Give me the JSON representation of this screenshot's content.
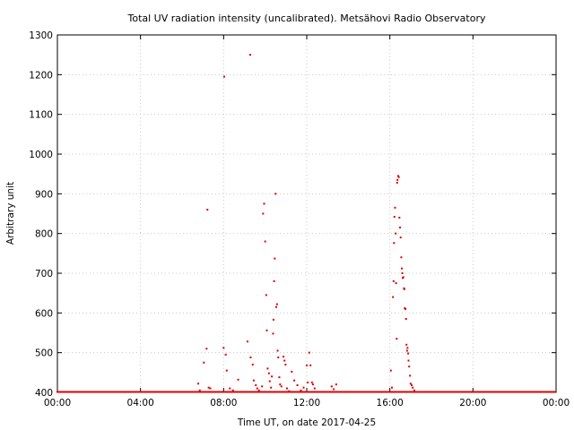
{
  "chart_data": {
    "type": "scatter",
    "title": "Total UV radiation intensity (uncalibrated). Metsähovi Radio Observatory",
    "xlabel": "Time UT, on date 2017-04-25",
    "ylabel": "Arbitrary unit",
    "xlim": [
      0,
      24
    ],
    "ylim": [
      400,
      1300
    ],
    "x_ticks": [
      0,
      4,
      8,
      12,
      16,
      20,
      24
    ],
    "x_tick_labels": [
      "00:00",
      "04:00",
      "08:00",
      "12:00",
      "16:00",
      "20:00",
      "00:00"
    ],
    "y_ticks": [
      400,
      500,
      600,
      700,
      800,
      900,
      1000,
      1100,
      1200,
      1300
    ],
    "grid": true,
    "marker_color": "#dd0000",
    "baseline": 400,
    "points": [
      [
        6.78,
        422
      ],
      [
        6.85,
        405
      ],
      [
        7.05,
        475
      ],
      [
        7.18,
        510
      ],
      [
        7.22,
        860
      ],
      [
        7.28,
        412
      ],
      [
        7.36,
        410
      ],
      [
        8.03,
        1195
      ],
      [
        8.0,
        512
      ],
      [
        8.1,
        495
      ],
      [
        8.15,
        455
      ],
      [
        8.3,
        410
      ],
      [
        8.45,
        405
      ],
      [
        8.7,
        432
      ],
      [
        9.15,
        528
      ],
      [
        9.28,
        1250
      ],
      [
        9.3,
        488
      ],
      [
        9.4,
        470
      ],
      [
        9.45,
        430
      ],
      [
        9.55,
        418
      ],
      [
        9.62,
        410
      ],
      [
        9.7,
        405
      ],
      [
        9.85,
        415
      ],
      [
        9.9,
        850
      ],
      [
        9.95,
        875
      ],
      [
        10.0,
        780
      ],
      [
        10.05,
        645
      ],
      [
        10.08,
        556
      ],
      [
        10.12,
        460
      ],
      [
        10.18,
        448
      ],
      [
        10.22,
        428
      ],
      [
        10.28,
        412
      ],
      [
        10.32,
        440
      ],
      [
        10.38,
        548
      ],
      [
        10.4,
        583
      ],
      [
        10.43,
        680
      ],
      [
        10.46,
        737
      ],
      [
        10.5,
        900
      ],
      [
        10.53,
        615
      ],
      [
        10.57,
        622
      ],
      [
        10.6,
        505
      ],
      [
        10.63,
        488
      ],
      [
        10.68,
        438
      ],
      [
        10.72,
        420
      ],
      [
        10.78,
        415
      ],
      [
        10.88,
        490
      ],
      [
        10.93,
        480
      ],
      [
        10.98,
        470
      ],
      [
        11.05,
        410
      ],
      [
        11.15,
        403
      ],
      [
        11.28,
        452
      ],
      [
        11.4,
        430
      ],
      [
        11.55,
        418
      ],
      [
        11.72,
        405
      ],
      [
        11.85,
        412
      ],
      [
        12.0,
        468
      ],
      [
        12.05,
        425
      ],
      [
        12.12,
        500
      ],
      [
        12.18,
        468
      ],
      [
        12.25,
        425
      ],
      [
        12.3,
        420
      ],
      [
        12.38,
        410
      ],
      [
        13.2,
        415
      ],
      [
        13.3,
        408
      ],
      [
        13.42,
        420
      ],
      [
        16.05,
        455
      ],
      [
        16.1,
        412
      ],
      [
        16.15,
        640
      ],
      [
        16.18,
        680
      ],
      [
        16.2,
        776
      ],
      [
        16.22,
        842
      ],
      [
        16.25,
        865
      ],
      [
        16.28,
        800
      ],
      [
        16.3,
        675
      ],
      [
        16.33,
        535
      ],
      [
        16.35,
        928
      ],
      [
        16.37,
        935
      ],
      [
        16.4,
        945
      ],
      [
        16.43,
        942
      ],
      [
        16.46,
        840
      ],
      [
        16.49,
        815
      ],
      [
        16.52,
        790
      ],
      [
        16.55,
        740
      ],
      [
        16.58,
        712
      ],
      [
        16.6,
        700
      ],
      [
        16.62,
        688
      ],
      [
        16.65,
        690
      ],
      [
        16.68,
        662
      ],
      [
        16.7,
        660
      ],
      [
        16.72,
        612
      ],
      [
        16.75,
        610
      ],
      [
        16.78,
        585
      ],
      [
        16.8,
        520
      ],
      [
        16.83,
        505
      ],
      [
        16.85,
        512
      ],
      [
        16.88,
        498
      ],
      [
        16.9,
        480
      ],
      [
        16.93,
        465
      ],
      [
        16.97,
        442
      ],
      [
        17.0,
        422
      ],
      [
        17.05,
        418
      ],
      [
        17.1,
        412
      ],
      [
        17.18,
        405
      ]
    ]
  }
}
